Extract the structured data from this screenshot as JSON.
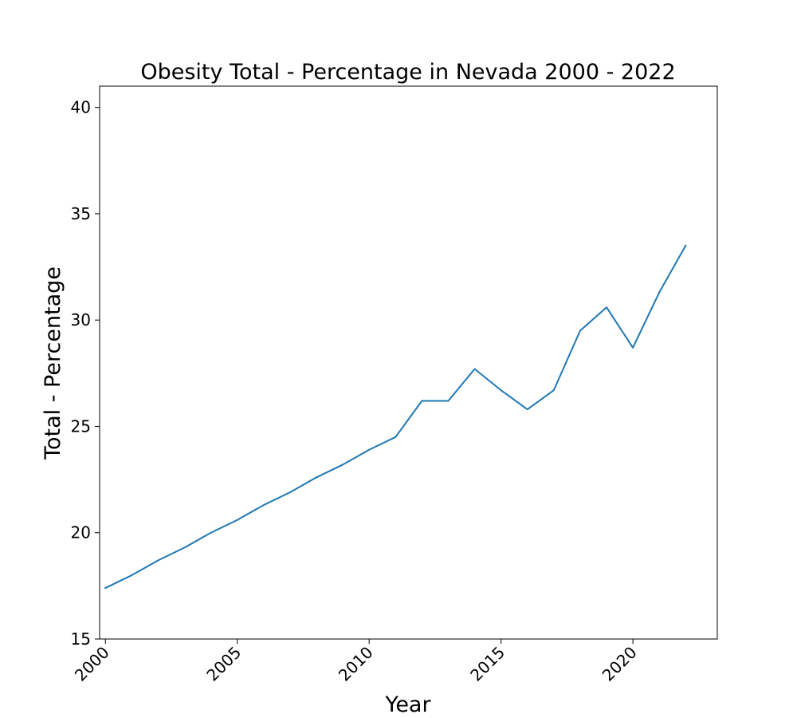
{
  "chart_data": {
    "type": "line",
    "title": "Obesity Total - Percentage in Nevada 2000 - 2022",
    "xlabel": "Year",
    "ylabel": "Total - Percentage",
    "x": [
      2000,
      2001,
      2002,
      2003,
      2004,
      2005,
      2006,
      2007,
      2008,
      2009,
      2010,
      2011,
      2012,
      2013,
      2014,
      2015,
      2016,
      2017,
      2018,
      2019,
      2020,
      2021,
      2022
    ],
    "series": [
      {
        "values": [
          17.4,
          18.0,
          18.7,
          19.3,
          20.0,
          20.6,
          21.3,
          21.9,
          22.6,
          23.2,
          23.9,
          24.5,
          26.2,
          26.2,
          27.7,
          26.7,
          25.8,
          26.7,
          29.5,
          30.6,
          28.7,
          31.3,
          33.5
        ],
        "color": "#1f77b4"
      }
    ],
    "xlim": [
      1999.78,
      2023.2
    ],
    "ylim": [
      15,
      41
    ],
    "xticks": [
      "2000",
      "2005",
      "2010",
      "2015",
      "2020"
    ],
    "yticks": [
      "15",
      "20",
      "25",
      "30",
      "35",
      "40"
    ],
    "grid": false,
    "legend": "none"
  }
}
